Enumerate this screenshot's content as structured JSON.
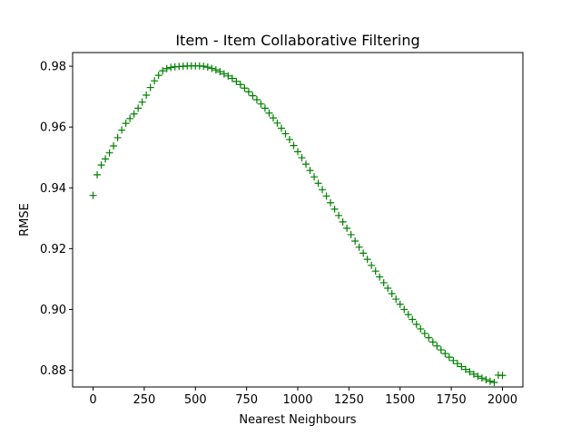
{
  "chart_data": {
    "type": "scatter",
    "title": "Item - Item Collaborative Filtering",
    "xlabel": "Nearest Neighbours",
    "ylabel": "RMSE",
    "xlim": [
      -100,
      2100
    ],
    "ylim": [
      0.8745,
      0.9845
    ],
    "xticks": [
      0,
      250,
      500,
      750,
      1000,
      1250,
      1500,
      1750,
      2000
    ],
    "xtick_labels": [
      "0",
      "250",
      "500",
      "750",
      "1000",
      "1250",
      "1500",
      "1750",
      "2000"
    ],
    "yticks": [
      0.88,
      0.9,
      0.92,
      0.94,
      0.96,
      0.98
    ],
    "ytick_labels": [
      "0.88",
      "0.90",
      "0.92",
      "0.94",
      "0.96",
      "0.98"
    ],
    "marker": "+",
    "grid": false,
    "series": [
      {
        "color": "#008000",
        "x": [
          0,
          20,
          40,
          60,
          80,
          100,
          120,
          140,
          160,
          180,
          200,
          220,
          240,
          260,
          280,
          300,
          320,
          340,
          360,
          380,
          400,
          420,
          440,
          460,
          480,
          500,
          520,
          540,
          560,
          580,
          600,
          620,
          640,
          660,
          680,
          700,
          720,
          740,
          760,
          780,
          800,
          820,
          840,
          860,
          880,
          900,
          920,
          940,
          960,
          980,
          1000,
          1020,
          1040,
          1060,
          1080,
          1100,
          1120,
          1140,
          1160,
          1180,
          1200,
          1220,
          1240,
          1260,
          1280,
          1300,
          1320,
          1340,
          1360,
          1380,
          1400,
          1420,
          1440,
          1460,
          1480,
          1500,
          1520,
          1540,
          1560,
          1580,
          1600,
          1620,
          1640,
          1660,
          1680,
          1700,
          1720,
          1740,
          1760,
          1780,
          1800,
          1820,
          1840,
          1860,
          1880,
          1900,
          1920,
          1940,
          1960,
          1980,
          2000
        ],
        "y": [
          0.9375,
          0.9443,
          0.9475,
          0.9495,
          0.9515,
          0.9538,
          0.9565,
          0.959,
          0.9612,
          0.9628,
          0.9643,
          0.9662,
          0.9682,
          0.9705,
          0.973,
          0.9752,
          0.977,
          0.9785,
          0.9792,
          0.9796,
          0.9798,
          0.9799,
          0.98,
          0.9801,
          0.9801,
          0.9801,
          0.9801,
          0.98,
          0.9797,
          0.9793,
          0.9788,
          0.9782,
          0.9775,
          0.9768,
          0.976,
          0.975,
          0.974,
          0.9728,
          0.9716,
          0.9703,
          0.969,
          0.9676,
          0.9662,
          0.9646,
          0.963,
          0.9613,
          0.9596,
          0.9578,
          0.9559,
          0.9539,
          0.9519,
          0.9499,
          0.9478,
          0.9457,
          0.9436,
          0.9415,
          0.9394,
          0.9373,
          0.9351,
          0.933,
          0.9309,
          0.9288,
          0.9267,
          0.9246,
          0.9225,
          0.9205,
          0.9185,
          0.9165,
          0.9145,
          0.9126,
          0.9107,
          0.9088,
          0.907,
          0.9052,
          0.9034,
          0.9017,
          0.9,
          0.8983,
          0.8967,
          0.8951,
          0.8936,
          0.8921,
          0.8907,
          0.8893,
          0.888,
          0.8867,
          0.8855,
          0.8843,
          0.8832,
          0.8822,
          0.8812,
          0.8803,
          0.8795,
          0.8787,
          0.878,
          0.8774,
          0.8769,
          0.8764,
          0.876,
          0.8784,
          0.8783
        ]
      }
    ]
  }
}
